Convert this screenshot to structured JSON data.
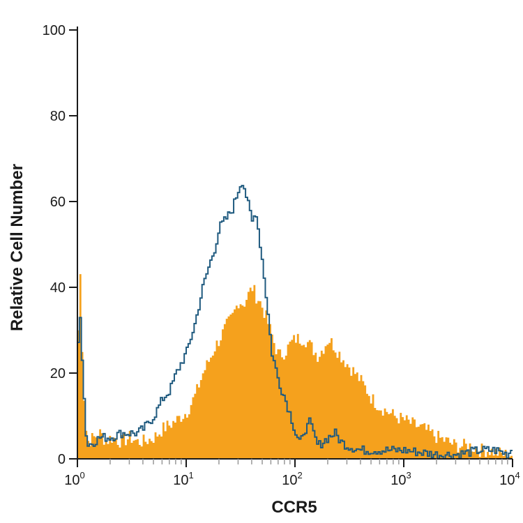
{
  "chart_data": {
    "type": "area",
    "title": "",
    "xlabel": "CCR5",
    "ylabel": "Relative Cell Number",
    "x_scale": "log",
    "xlim": [
      1,
      10000
    ],
    "ylim": [
      0,
      100
    ],
    "grid": false,
    "x_ticks": [
      {
        "base": "10",
        "exp": "0",
        "value": 1
      },
      {
        "base": "10",
        "exp": "1",
        "value": 10
      },
      {
        "base": "10",
        "exp": "2",
        "value": 100
      },
      {
        "base": "10",
        "exp": "3",
        "value": 1000
      },
      {
        "base": "10",
        "exp": "4",
        "value": 10000
      }
    ],
    "y_ticks": [
      "0",
      "20",
      "40",
      "60",
      "80",
      "100"
    ],
    "colors": {
      "filled": "#f5a11d",
      "outline": "#1f5a7f",
      "axis": "#1a1a1a",
      "minor_tick": "#999999"
    },
    "series": [
      {
        "style": "filled",
        "x": [
          1,
          1.05,
          1.1,
          1.2,
          1.4,
          1.6,
          1.8,
          2,
          2.5,
          3,
          3.5,
          4,
          5,
          6,
          7,
          8,
          10,
          12,
          14,
          16,
          18,
          20,
          23,
          26,
          30,
          33,
          36,
          40,
          43,
          46,
          50,
          55,
          60,
          65,
          70,
          80,
          90,
          100,
          120,
          140,
          160,
          180,
          200,
          230,
          260,
          300,
          350,
          400,
          450,
          500,
          600,
          700,
          800,
          1000,
          1200,
          1500,
          2000,
          2500,
          3000,
          4000,
          5000,
          6000,
          8000,
          10000
        ],
        "y": [
          30,
          45,
          20,
          4,
          5,
          6,
          4,
          5,
          4,
          5,
          4,
          4,
          5,
          7,
          8,
          9,
          11,
          15,
          20,
          23,
          26,
          28,
          31,
          33,
          37,
          36,
          38,
          40,
          38,
          37,
          35,
          32,
          29,
          26,
          24,
          25,
          27,
          28,
          28,
          26,
          24,
          26,
          28,
          26,
          24,
          22,
          20,
          18,
          16,
          14,
          12,
          11,
          10,
          9,
          8,
          7,
          5,
          4,
          3,
          3,
          2,
          2,
          1,
          1
        ]
      },
      {
        "style": "outline",
        "x": [
          1,
          1.05,
          1.1,
          1.2,
          1.4,
          1.6,
          1.8,
          2,
          2.5,
          3,
          3.5,
          4,
          5,
          6,
          7,
          8,
          10,
          12,
          14,
          16,
          18,
          20,
          23,
          26,
          30,
          32,
          34,
          36,
          40,
          43,
          46,
          50,
          55,
          60,
          70,
          80,
          90,
          100,
          110,
          120,
          130,
          140,
          160,
          200,
          230,
          260,
          300,
          400,
          500,
          700,
          1000,
          2000,
          3000,
          5000,
          7000,
          9000,
          10000
        ],
        "y": [
          27,
          35,
          20,
          3,
          4,
          5,
          5,
          5,
          6,
          6,
          6,
          7,
          10,
          14,
          16,
          20,
          25,
          32,
          40,
          45,
          49,
          54,
          56,
          58,
          63,
          65,
          63,
          60,
          55,
          58,
          52,
          45,
          35,
          25,
          18,
          14,
          10,
          6,
          4,
          5,
          10,
          7,
          3,
          5,
          6,
          4,
          3,
          2,
          2,
          2,
          2,
          1,
          1,
          2,
          2,
          1,
          3
        ]
      }
    ]
  }
}
